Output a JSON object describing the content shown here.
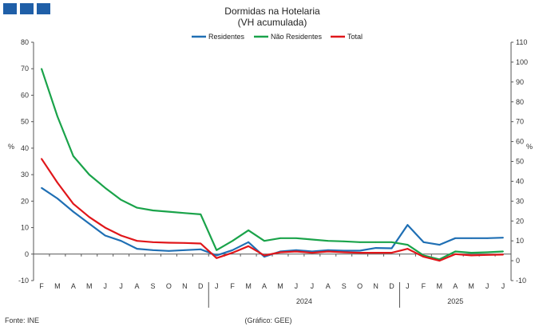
{
  "header": {
    "brand_color": "#1f5fa8"
  },
  "chart_data": {
    "type": "line",
    "title": "Dormidas na Hotelaria",
    "subtitle": "(VH acumulada)",
    "ylabel_left": "%",
    "ylabel_right": "%",
    "ylim_left": [
      -10,
      80
    ],
    "yticks_left": [
      -10,
      0,
      10,
      20,
      30,
      40,
      50,
      60,
      70,
      80
    ],
    "ylim_right": [
      -10,
      110
    ],
    "yticks_right": [
      -10,
      0,
      10,
      20,
      30,
      40,
      50,
      60,
      70,
      80,
      90,
      100,
      110
    ],
    "grid": false,
    "legend_position": "top-center",
    "categories": [
      "F",
      "M",
      "A",
      "M",
      "J",
      "J",
      "A",
      "S",
      "O",
      "N",
      "D",
      "J",
      "F",
      "M",
      "A",
      "M",
      "J",
      "J",
      "A",
      "S",
      "O",
      "N",
      "D",
      "J",
      "F",
      "M",
      "A",
      "M",
      "J",
      "J"
    ],
    "year_labels": [
      {
        "label": "2024",
        "start_index": 11,
        "end_index": 22
      },
      {
        "label": "2025",
        "start_index": 23,
        "end_index": 29
      }
    ],
    "series": [
      {
        "name": "Residentes",
        "color": "#1f6fb4",
        "values": [
          25,
          21,
          16,
          11.5,
          7,
          5,
          2,
          1.5,
          1.2,
          1.5,
          1.8,
          -0.5,
          1.5,
          4.5,
          -1,
          1,
          1.5,
          1,
          1.5,
          1.3,
          1.3,
          2.3,
          2.2,
          11,
          4.5,
          3.5,
          6,
          6,
          6,
          6.2
        ]
      },
      {
        "name": "Não Residentes",
        "color": "#1aa34a",
        "values": [
          70,
          52,
          37,
          30,
          25,
          20.5,
          17.5,
          16.5,
          16,
          15.5,
          15,
          1.5,
          5,
          9,
          5,
          6,
          6,
          5.5,
          5,
          4.8,
          4.5,
          4.5,
          4.5,
          3.5,
          -0.5,
          -2,
          1,
          0.5,
          0.7,
          1
        ]
      },
      {
        "name": "Total",
        "color": "#e0161a",
        "values": [
          36,
          27,
          19,
          14,
          10,
          7,
          5,
          4.5,
          4.3,
          4.2,
          4,
          -1.5,
          0.5,
          3,
          -0.5,
          0.7,
          1,
          0.5,
          1,
          0.7,
          0.5,
          0.5,
          0.5,
          2,
          -1,
          -2.5,
          0,
          -0.5,
          -0.3,
          -0.2
        ]
      }
    ],
    "source_left": "Fonte: INE",
    "source_center": "(Gráfico: GEE)"
  }
}
